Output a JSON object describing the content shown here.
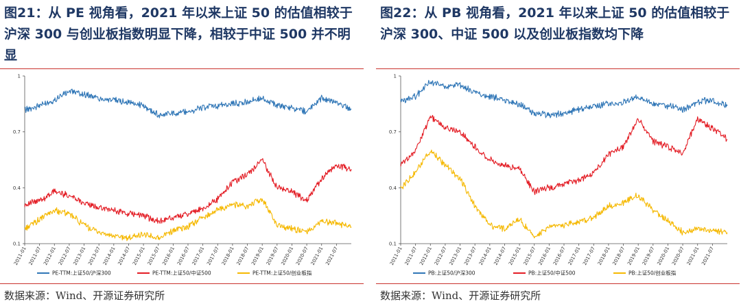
{
  "charts": [
    {
      "title": "图21：从 PE 视角看，2021 年以来上证 50 的估值相较于沪深 300 与创业板指数明显下降，相较于中证 500 并不明显",
      "source": "数据来源：Wind、开源证券研究所"
    },
    {
      "title": "图22：从 PB 视角看，2021 年以来上证 50 的估值相较于沪深 300、中证 500 以及创业板指数均下降",
      "source": "数据来源：Wind、开源证券研究所"
    }
  ],
  "chart_data": [
    {
      "type": "line",
      "title": "",
      "ylim": [
        0.1,
        1
      ],
      "yticks": [
        0.1,
        0.4,
        0.7,
        1
      ],
      "ytick_labels": [
        "0.1",
        "0.4",
        "0.7",
        "1"
      ],
      "x": [
        "2011-01",
        "2011-07",
        "2012-01",
        "2012-07",
        "2013-01",
        "2013-07",
        "2014-01",
        "2014-07",
        "2015-01",
        "2015-07",
        "2016-01",
        "2016-07",
        "2017-01",
        "2017-07",
        "2018-01",
        "2018-07",
        "2019-01",
        "2019-07",
        "2020-01",
        "2020-07",
        "2021-01",
        "2021-07",
        "2021-10"
      ],
      "xtick_labels": [
        "2011-01",
        "2011-07",
        "2012-01",
        "2012-07",
        "2013-01",
        "2013-07",
        "2014-01",
        "2014-07",
        "2015-01",
        "2015-07",
        "2016-01",
        "2016-07",
        "2017-01",
        "2017-07",
        "2018-01",
        "2018-07",
        "2019-01",
        "2019-07",
        "2020-01",
        "2020-07",
        "2021-01",
        "2021-07"
      ],
      "legend_position": "bottom",
      "series": [
        {
          "name": "PE-TTM:上证50/沪深300",
          "color": "#2e75b6",
          "values": [
            0.82,
            0.84,
            0.87,
            0.92,
            0.9,
            0.88,
            0.87,
            0.86,
            0.84,
            0.79,
            0.8,
            0.81,
            0.83,
            0.84,
            0.85,
            0.86,
            0.88,
            0.84,
            0.83,
            0.81,
            0.88,
            0.86,
            0.82
          ]
        },
        {
          "name": "PE-TTM:上证50/中证500",
          "color": "#e31b23",
          "values": [
            0.31,
            0.33,
            0.38,
            0.36,
            0.32,
            0.29,
            0.28,
            0.26,
            0.25,
            0.22,
            0.24,
            0.26,
            0.29,
            0.34,
            0.43,
            0.47,
            0.55,
            0.4,
            0.38,
            0.33,
            0.45,
            0.52,
            0.5
          ]
        },
        {
          "name": "PE-TTM:上证50/创业板指",
          "color": "#f5b800",
          "values": [
            0.18,
            0.23,
            0.28,
            0.26,
            0.2,
            0.16,
            0.14,
            0.13,
            0.15,
            0.13,
            0.17,
            0.19,
            0.24,
            0.28,
            0.31,
            0.3,
            0.34,
            0.2,
            0.18,
            0.16,
            0.22,
            0.21,
            0.19
          ]
        }
      ]
    },
    {
      "type": "line",
      "title": "",
      "ylim": [
        0.1,
        1
      ],
      "yticks": [
        0.1,
        0.4,
        0.7,
        1
      ],
      "ytick_labels": [
        "0.1",
        "0.4",
        "0.7",
        "1"
      ],
      "x": [
        "2011-01",
        "2011-07",
        "2012-01",
        "2012-07",
        "2013-01",
        "2013-07",
        "2014-01",
        "2014-07",
        "2015-01",
        "2015-07",
        "2016-01",
        "2016-07",
        "2017-01",
        "2017-07",
        "2018-01",
        "2018-07",
        "2019-01",
        "2019-07",
        "2020-01",
        "2020-07",
        "2021-01",
        "2021-07",
        "2021-10"
      ],
      "xtick_labels": [
        "2011-01",
        "2011-07",
        "2012-01",
        "2012-07",
        "2013-01",
        "2013-07",
        "2014-01",
        "2014-07",
        "2015-01",
        "2015-07",
        "2016-01",
        "2016-07",
        "2017-01",
        "2017-07",
        "2018-01",
        "2018-07",
        "2019-01",
        "2019-07",
        "2020-01",
        "2020-07",
        "2021-01",
        "2021-07"
      ],
      "legend_position": "bottom",
      "series": [
        {
          "name": "PB:上证50/沪深300",
          "color": "#2e75b6",
          "values": [
            0.86,
            0.89,
            0.97,
            0.94,
            0.95,
            0.91,
            0.89,
            0.87,
            0.85,
            0.8,
            0.79,
            0.8,
            0.82,
            0.84,
            0.85,
            0.86,
            0.89,
            0.85,
            0.84,
            0.82,
            0.86,
            0.87,
            0.84
          ]
        },
        {
          "name": "PB:上证50/中证500",
          "color": "#e31b23",
          "values": [
            0.52,
            0.6,
            0.78,
            0.72,
            0.7,
            0.62,
            0.55,
            0.52,
            0.5,
            0.38,
            0.4,
            0.42,
            0.44,
            0.48,
            0.58,
            0.62,
            0.77,
            0.65,
            0.62,
            0.58,
            0.77,
            0.72,
            0.66
          ]
        },
        {
          "name": "PB:上证50/创业板指",
          "color": "#f5b800",
          "values": [
            0.4,
            0.48,
            0.6,
            0.52,
            0.45,
            0.3,
            0.2,
            0.18,
            0.23,
            0.14,
            0.19,
            0.2,
            0.22,
            0.24,
            0.3,
            0.32,
            0.36,
            0.28,
            0.22,
            0.16,
            0.18,
            0.17,
            0.16
          ]
        }
      ]
    }
  ]
}
